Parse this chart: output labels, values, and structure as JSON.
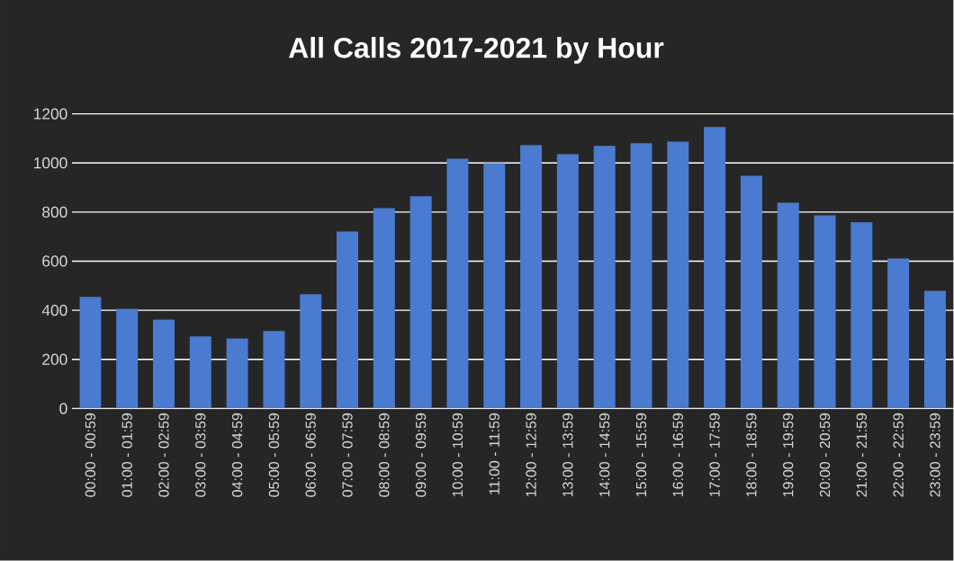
{
  "chart_data": {
    "type": "bar",
    "title": "All Calls 2017-2021 by Hour",
    "categories": [
      "00:00 - 00:59",
      "01:00 - 01:59",
      "02:00 - 02:59",
      "03:00 - 03:59",
      "04:00 - 04:59",
      "05:00 - 05:59",
      "06:00 - 06:59",
      "07:00 - 07:59",
      "08:00 - 08:59",
      "09:00 - 09:59",
      "10:00 - 10:59",
      "11:00 - 11:59",
      "12:00 - 12:59",
      "13:00 - 13:59",
      "14:00 - 14:59",
      "15:00 - 15:59",
      "16:00 - 16:59",
      "17:00 - 17:59",
      "18:00 - 18:59",
      "19:00 - 19:59",
      "20:00 - 20:59",
      "21:00 - 21:59",
      "22:00 - 22:59",
      "23:00 - 23:59"
    ],
    "values": [
      454,
      406,
      362,
      293,
      285,
      315,
      465,
      721,
      816,
      864,
      1017,
      999,
      1072,
      1036,
      1069,
      1080,
      1087,
      1146,
      948,
      838,
      787,
      758,
      611,
      479
    ],
    "color": "#4a7bd0",
    "ylim": [
      0,
      1200
    ],
    "yticks": [
      0,
      200,
      400,
      600,
      800,
      1000,
      1200
    ],
    "grid": "y"
  }
}
